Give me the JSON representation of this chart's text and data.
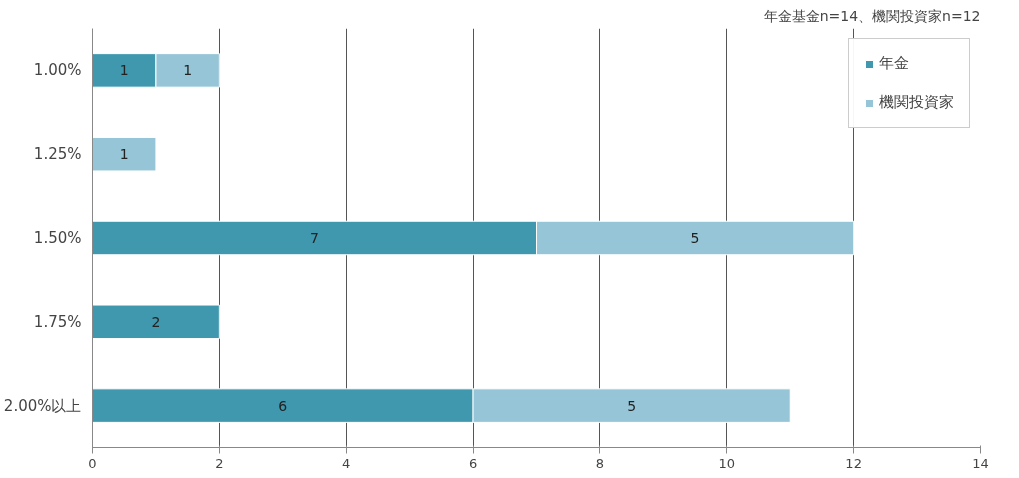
{
  "chart_data": {
    "type": "bar",
    "orientation": "horizontal",
    "stacked": true,
    "categories": [
      "1.00%",
      "1.25%",
      "1.50%",
      "1.75%",
      "2.00%以上"
    ],
    "series": [
      {
        "name": "年金",
        "color": "#3f98ae",
        "values": [
          1,
          null,
          7,
          2,
          6
        ]
      },
      {
        "name": "機関投資家",
        "color": "#95c5d6",
        "values": [
          1,
          1,
          5,
          null,
          5
        ]
      }
    ],
    "xlim": [
      0,
      14
    ],
    "xticks": [
      0,
      2,
      4,
      6,
      8,
      10,
      12,
      14
    ],
    "grid": "x",
    "legend": "top right",
    "data_labels": true,
    "annotations": [
      "年金基金n=14、機関投資家n=12"
    ]
  }
}
